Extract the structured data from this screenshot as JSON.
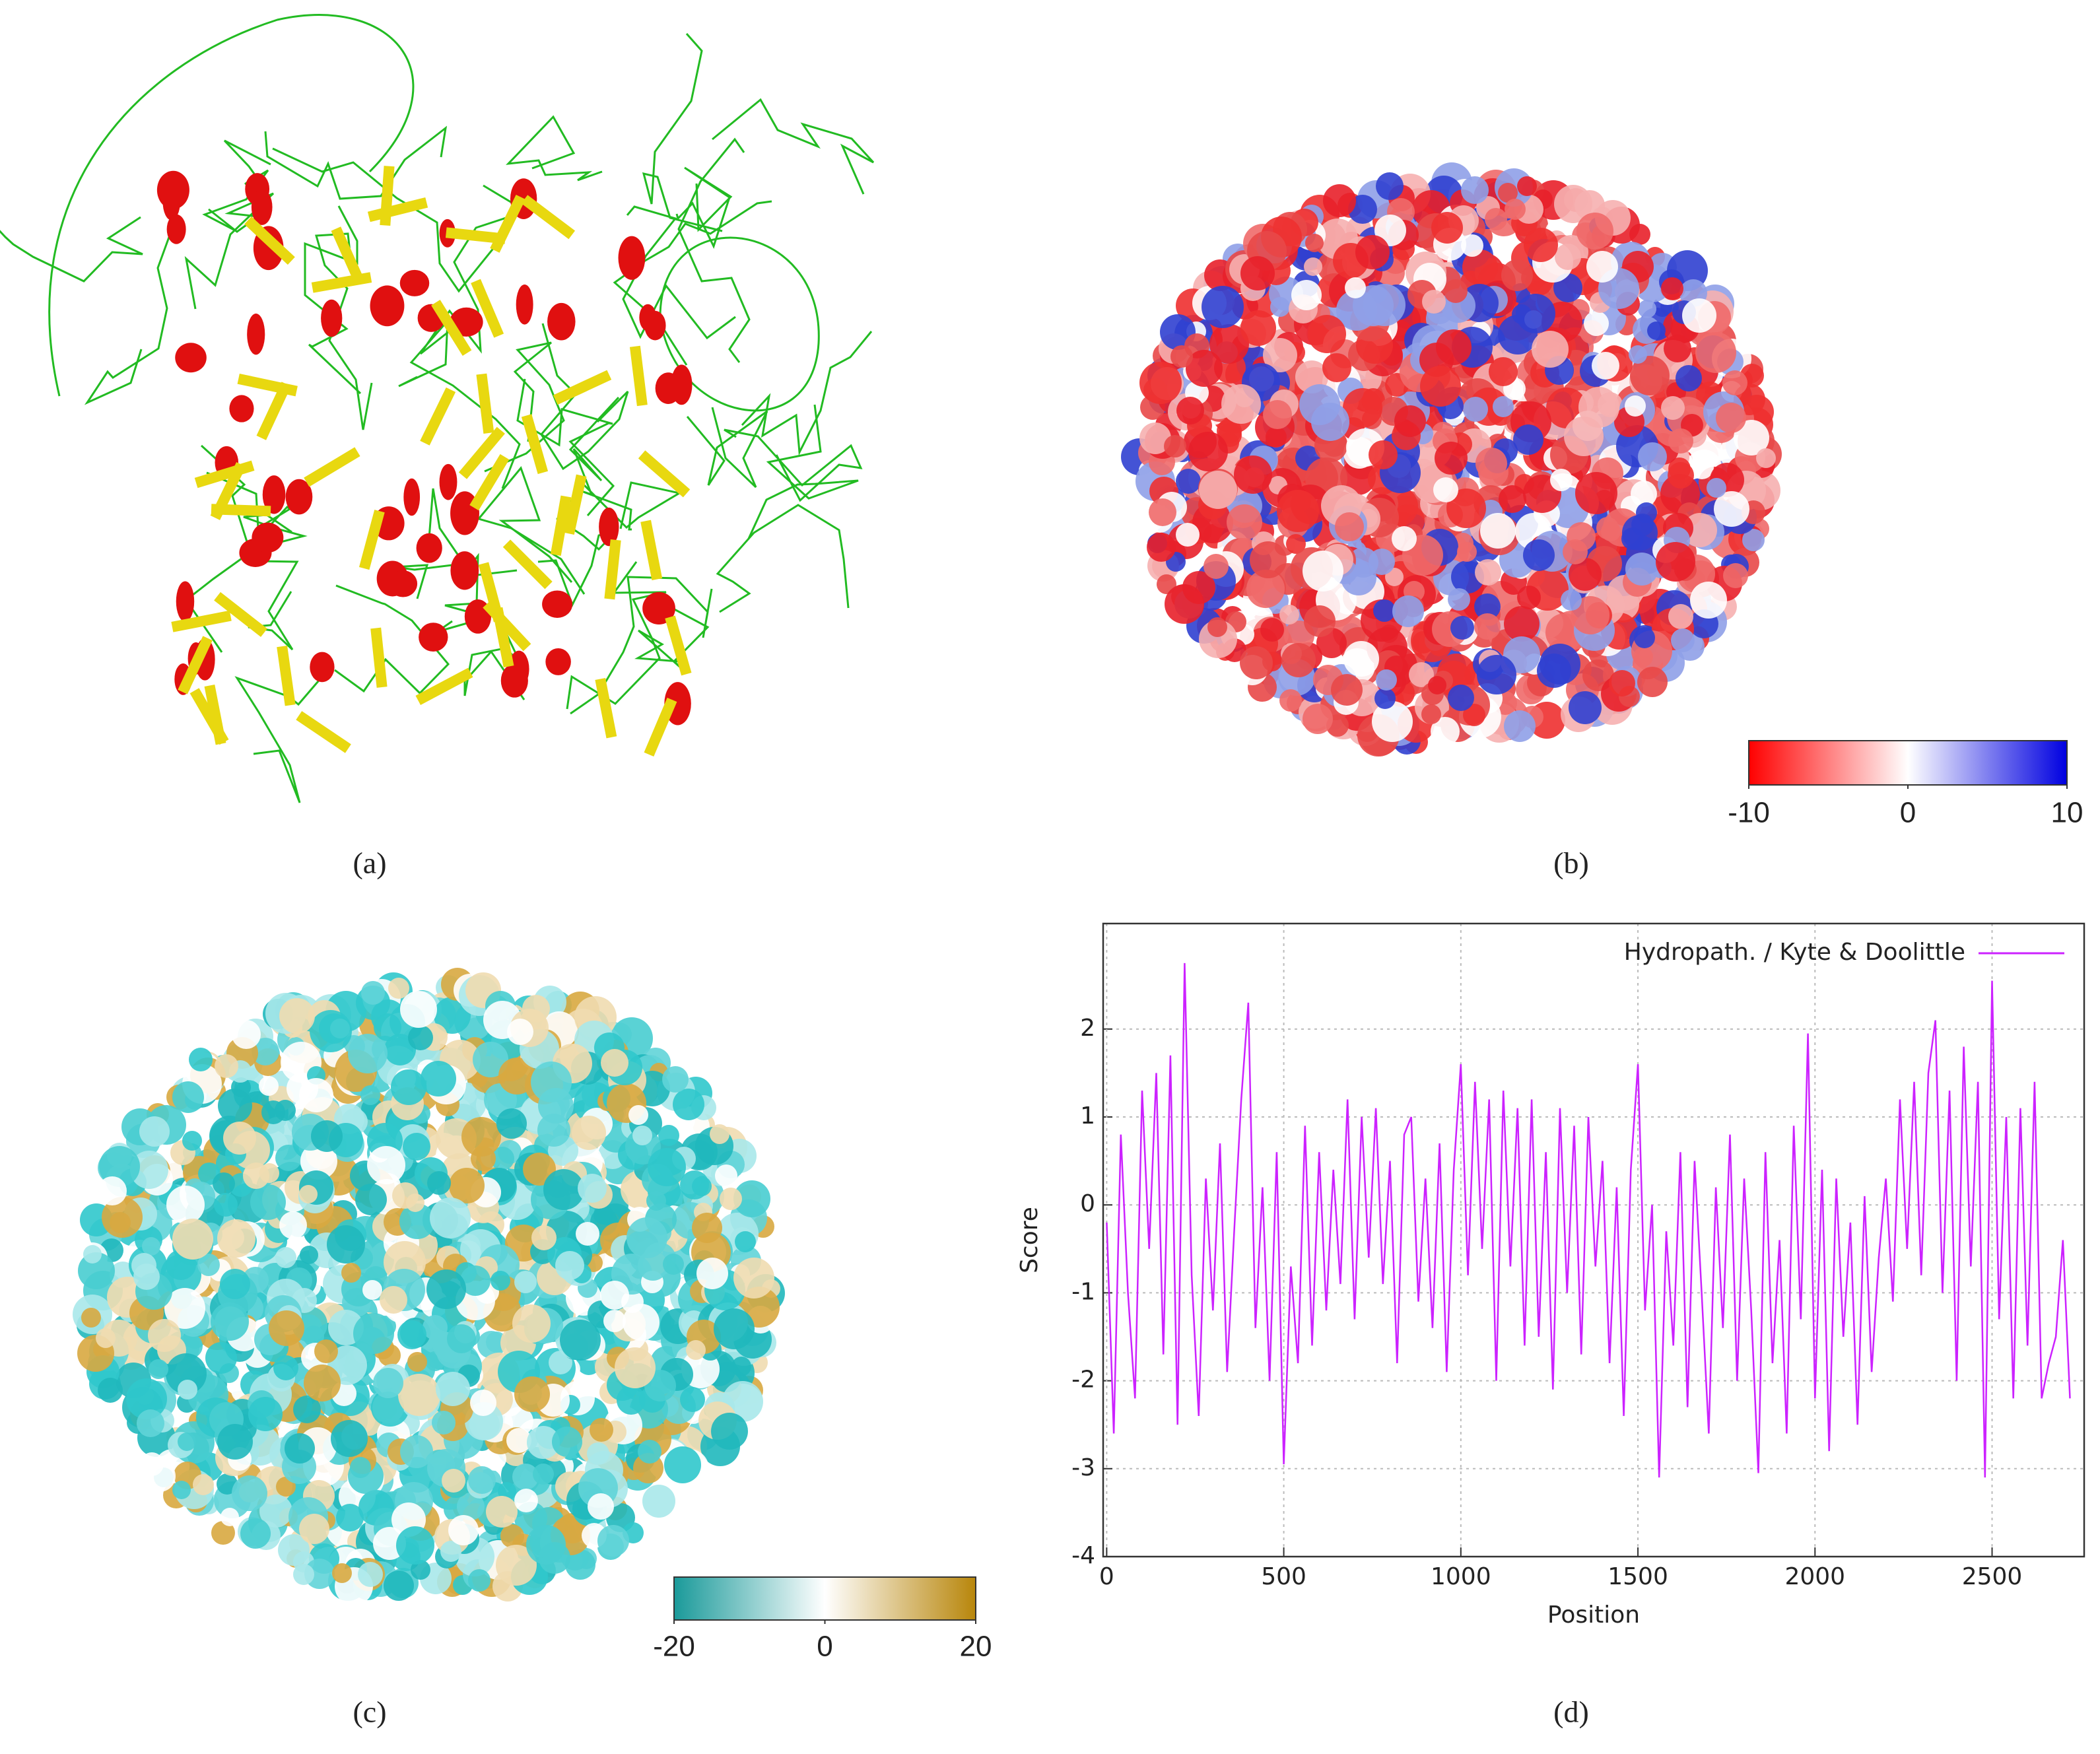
{
  "panels": [
    {
      "label": "(a)"
    },
    {
      "label": "(b)"
    },
    {
      "label": "(c)"
    },
    {
      "label": "(d)"
    }
  ],
  "chart_data": [
    {
      "type": "colorbar",
      "colors": [
        "#ff0000",
        "#ffffff",
        "#0000e0"
      ],
      "xlim": [
        -10,
        10
      ],
      "xticks": [
        -10,
        0,
        10
      ]
    },
    {
      "type": "colorbar",
      "colors": [
        "#1a9a9a",
        "#ffffff",
        "#b8860b"
      ],
      "xlim": [
        -20,
        20
      ],
      "xticks": [
        -20,
        0,
        20
      ]
    },
    {
      "type": "line",
      "xlabel": "Position",
      "ylabel": "Score",
      "xlim": [
        -10,
        2760
      ],
      "ylim": [
        -4,
        3.2
      ],
      "xticks": [
        0,
        500,
        1000,
        1500,
        2000,
        2500
      ],
      "yticks": [
        -4,
        -3,
        -2,
        -1,
        0,
        1,
        2
      ],
      "grid": true,
      "legend": "upper right",
      "x": [
        0,
        20,
        40,
        60,
        80,
        100,
        120,
        140,
        160,
        180,
        200,
        220,
        240,
        260,
        280,
        300,
        320,
        340,
        360,
        380,
        400,
        420,
        440,
        460,
        480,
        500,
        520,
        540,
        560,
        580,
        600,
        620,
        640,
        660,
        680,
        700,
        720,
        740,
        760,
        780,
        800,
        820,
        840,
        860,
        880,
        900,
        920,
        940,
        960,
        980,
        1000,
        1020,
        1040,
        1060,
        1080,
        1100,
        1120,
        1140,
        1160,
        1180,
        1200,
        1220,
        1240,
        1260,
        1280,
        1300,
        1320,
        1340,
        1360,
        1380,
        1400,
        1420,
        1440,
        1460,
        1480,
        1500,
        1520,
        1540,
        1560,
        1580,
        1600,
        1620,
        1640,
        1660,
        1680,
        1700,
        1720,
        1740,
        1760,
        1780,
        1800,
        1820,
        1840,
        1860,
        1880,
        1900,
        1920,
        1940,
        1960,
        1980,
        2000,
        2020,
        2040,
        2060,
        2080,
        2100,
        2120,
        2140,
        2160,
        2180,
        2200,
        2220,
        2240,
        2260,
        2280,
        2300,
        2320,
        2340,
        2360,
        2380,
        2400,
        2420,
        2440,
        2460,
        2480,
        2500,
        2520,
        2540,
        2560,
        2580,
        2600,
        2620,
        2640,
        2660,
        2680,
        2700,
        2720
      ],
      "series": [
        {
          "name": "Hydropath. / Kyte & Doolittle",
          "color": "#cc22ff",
          "values": [
            -0.2,
            -2.6,
            0.8,
            -1.0,
            -2.2,
            1.3,
            -0.5,
            1.5,
            -1.7,
            1.7,
            -2.5,
            2.75,
            -0.8,
            -2.4,
            0.3,
            -1.2,
            0.7,
            -1.9,
            -0.3,
            1.2,
            2.3,
            -1.4,
            0.2,
            -2.0,
            0.6,
            -2.95,
            -0.7,
            -1.8,
            0.9,
            -1.6,
            0.6,
            -1.2,
            0.4,
            -0.9,
            1.2,
            -1.3,
            1.0,
            -0.6,
            1.1,
            -0.9,
            0.5,
            -1.8,
            0.8,
            1.0,
            -1.1,
            0.3,
            -1.4,
            0.7,
            -1.9,
            0.4,
            1.6,
            -0.8,
            1.4,
            -0.5,
            1.2,
            -2.0,
            1.3,
            -0.7,
            1.1,
            -1.6,
            1.2,
            -1.5,
            0.6,
            -2.1,
            1.1,
            -1.0,
            0.9,
            -1.7,
            1.0,
            -0.7,
            0.5,
            -1.8,
            0.2,
            -2.4,
            0.4,
            1.6,
            -1.2,
            0.0,
            -3.1,
            -0.3,
            -1.6,
            0.6,
            -2.3,
            0.5,
            -1.0,
            -2.6,
            0.2,
            -1.4,
            0.8,
            -2.0,
            0.3,
            -1.2,
            -3.05,
            0.6,
            -1.8,
            -0.4,
            -2.6,
            0.9,
            -1.3,
            1.95,
            -2.2,
            0.4,
            -2.8,
            0.3,
            -1.5,
            -0.2,
            -2.5,
            0.1,
            -1.9,
            -0.6,
            0.3,
            -1.1,
            1.2,
            -0.5,
            1.4,
            -0.8,
            1.5,
            2.1,
            -1.0,
            1.3,
            -2.0,
            1.8,
            -0.7,
            1.4,
            -3.1,
            2.55,
            -1.3,
            1.0,
            -2.2,
            1.1,
            -1.6,
            1.4,
            -2.2,
            -1.8,
            -1.5,
            -0.4,
            -2.2
          ]
        }
      ]
    }
  ]
}
